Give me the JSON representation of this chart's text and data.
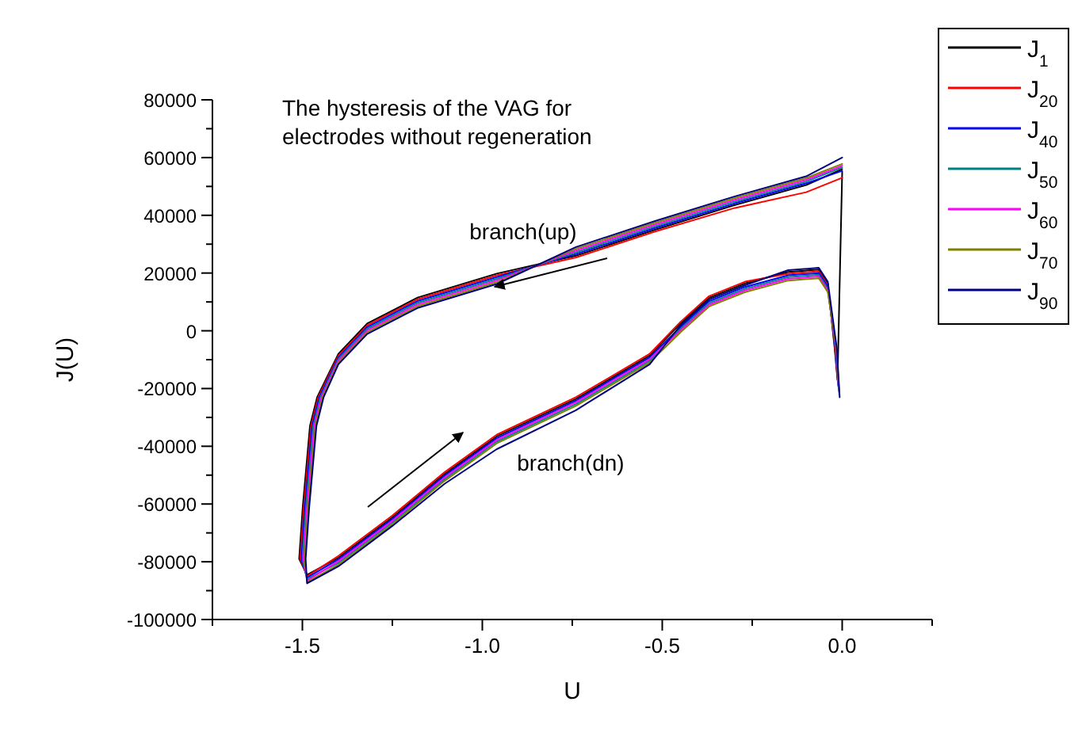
{
  "chart_data": {
    "type": "line",
    "title": "The hysteresis of the VAG for electrodes without regeneration",
    "xlabel": "U",
    "ylabel": "J(U)",
    "series": [
      {
        "name": "J$_{1}$",
        "color": "#000000",
        "x": [
          0.0,
          -0.1,
          -0.3,
          -0.52,
          -0.74,
          -0.96,
          -1.18,
          -1.32,
          -1.4,
          -1.459,
          -1.479,
          -1.499,
          -1.509,
          -1.487,
          -1.4,
          -1.25,
          -1.105,
          -0.96,
          -0.74,
          -0.535,
          -0.45,
          -0.37,
          -0.27,
          -0.15,
          -0.065,
          -0.04,
          -0.021,
          -0.013,
          0.0
        ],
        "values": [
          56000,
          50500,
          43500,
          35000,
          26000,
          19800,
          11500,
          2500,
          -8000,
          -23000,
          -33000,
          -61000,
          -79000,
          -84500,
          -78600,
          -64600,
          -49600,
          -36600,
          -23600,
          -8600,
          2400,
          11400,
          16400,
          20400,
          21200,
          16400,
          -6000,
          -17000,
          55000
        ]
      },
      {
        "name": "J$_{20}$",
        "color": "#ff0000",
        "x": [
          0.0,
          -0.1,
          -0.3,
          -0.52,
          -0.74,
          -0.96,
          -1.18,
          -1.32,
          -1.4,
          -1.456,
          -1.476,
          -1.496,
          -1.506,
          -1.487,
          -1.4,
          -1.25,
          -1.105,
          -0.96,
          -0.74,
          -0.535,
          -0.45,
          -0.37,
          -0.27,
          -0.15,
          -0.065,
          -0.04,
          -0.02,
          -0.012
        ],
        "values": [
          53000,
          48000,
          42500,
          34400,
          25400,
          19200,
          10900,
          1900,
          -8600,
          -23000,
          -33000,
          -61000,
          -79000,
          -85000,
          -78000,
          -64000,
          -49000,
          -36000,
          -23000,
          -8000,
          3000,
          12000,
          17000,
          19800,
          20600,
          15800,
          -6000,
          -18000
        ]
      },
      {
        "name": "J$_{40}$",
        "color": "#0000ff",
        "x": [
          0.0,
          -0.1,
          -0.3,
          -0.52,
          -0.74,
          -0.96,
          -1.18,
          -1.32,
          -1.4,
          -1.453,
          -1.473,
          -1.493,
          -1.503,
          -1.487,
          -1.4,
          -1.25,
          -1.105,
          -0.96,
          -0.74,
          -0.535,
          -0.45,
          -0.37,
          -0.27,
          -0.15,
          -0.065,
          -0.04,
          -0.019,
          -0.011
        ],
        "values": [
          55400,
          51100,
          44100,
          35600,
          26600,
          18600,
          10300,
          1300,
          -9200,
          -23000,
          -33000,
          -61000,
          -79000,
          -85500,
          -79200,
          -65200,
          -50200,
          -37200,
          -24200,
          -9200,
          1200,
          10200,
          15200,
          19200,
          20000,
          15200,
          -6000,
          -19000
        ]
      },
      {
        "name": "J$_{50}$",
        "color": "#008080",
        "x": [
          0.0,
          -0.1,
          -0.3,
          -0.52,
          -0.74,
          -0.96,
          -1.18,
          -1.32,
          -1.4,
          -1.45,
          -1.47,
          -1.49,
          -1.5,
          -1.487,
          -1.4,
          -1.25,
          -1.105,
          -0.96,
          -0.74,
          -0.535,
          -0.45,
          -0.37,
          -0.27,
          -0.15,
          -0.065,
          -0.04,
          -0.018,
          -0.01
        ],
        "values": [
          56600,
          51700,
          44700,
          36200,
          27200,
          18000,
          9700,
          700,
          -9800,
          -23000,
          -33000,
          -61000,
          -79000,
          -86000,
          -80400,
          -66400,
          -51400,
          -38400,
          -25400,
          -10400,
          600,
          9600,
          14600,
          18600,
          19400,
          14600,
          -6000,
          -20000
        ]
      },
      {
        "name": "J$_{60}$",
        "color": "#ff00ff",
        "x": [
          0.0,
          -0.1,
          -0.3,
          -0.52,
          -0.74,
          -0.96,
          -1.18,
          -1.32,
          -1.4,
          -1.447,
          -1.467,
          -1.487,
          -1.497,
          -1.487,
          -1.4,
          -1.25,
          -1.105,
          -0.96,
          -0.74,
          -0.535,
          -0.45,
          -0.37,
          -0.27,
          -0.15,
          -0.065,
          -0.04,
          -0.017,
          -0.009
        ],
        "values": [
          57200,
          52300,
          45300,
          36800,
          27800,
          17400,
          9100,
          100,
          -10400,
          -23000,
          -33000,
          -61000,
          -79000,
          -86500,
          -79800,
          -65800,
          -50800,
          -37800,
          -24800,
          -9800,
          0,
          9000,
          14000,
          18000,
          18800,
          14000,
          -6000,
          -21000
        ]
      },
      {
        "name": "J$_{70}$",
        "color": "#808000",
        "x": [
          0.0,
          -0.1,
          -0.3,
          -0.52,
          -0.74,
          -0.96,
          -1.18,
          -1.32,
          -1.4,
          -1.444,
          -1.464,
          -1.484,
          -1.494,
          -1.487,
          -1.4,
          -1.25,
          -1.105,
          -0.96,
          -0.74,
          -0.535,
          -0.45,
          -0.37,
          -0.27,
          -0.15,
          -0.065,
          -0.04,
          -0.016,
          -0.008
        ],
        "values": [
          57800,
          52900,
          45900,
          37400,
          28400,
          16800,
          8500,
          -500,
          -11000,
          -23000,
          -33000,
          -61000,
          -79000,
          -87000,
          -81000,
          -67000,
          -52000,
          -39000,
          -26000,
          -11000,
          -600,
          8400,
          13400,
          17400,
          18200,
          13400,
          -6000,
          -22000
        ]
      },
      {
        "name": "J$_{90}$",
        "color": "#000080",
        "x": [
          0.0,
          -0.1,
          -0.3,
          -0.52,
          -0.74,
          -0.96,
          -1.18,
          -1.32,
          -1.4,
          -1.441,
          -1.461,
          -1.481,
          -1.491,
          -1.487,
          -1.4,
          -1.25,
          -1.105,
          -0.96,
          -0.74,
          -0.535,
          -0.45,
          -0.37,
          -0.27,
          -0.15,
          -0.065,
          -0.04,
          -0.015,
          -0.007
        ],
        "values": [
          60000,
          53500,
          46500,
          38000,
          29000,
          16200,
          7900,
          -1100,
          -11600,
          -23000,
          -33000,
          -61000,
          -79000,
          -87500,
          -81600,
          -67600,
          -53000,
          -41000,
          -27500,
          -11600,
          1800,
          10800,
          15800,
          21000,
          21800,
          17000,
          -6000,
          -23000
        ]
      }
    ],
    "xlim": [
      -1.75,
      0.25
    ],
    "xticks": [
      {
        "value": -1.75,
        "label": null
      },
      {
        "value": -1.5,
        "label": "-1.5"
      },
      {
        "value": -1.25,
        "label": null
      },
      {
        "value": -1.0,
        "label": "-1.0"
      },
      {
        "value": -0.75,
        "label": null
      },
      {
        "value": -0.5,
        "label": "-0.5"
      },
      {
        "value": -0.25,
        "label": null
      },
      {
        "value": 0,
        "label": "0.0"
      },
      {
        "value": 0.25,
        "label": null
      }
    ],
    "ylim": [
      -100000,
      80000
    ],
    "yticks": [
      -100000,
      {
        "value": -90000,
        "label": null
      },
      -80000,
      {
        "value": -70000,
        "label": null
      },
      -60000,
      {
        "value": -50000,
        "label": null
      },
      -40000,
      {
        "value": -30000,
        "label": null
      },
      -20000,
      {
        "value": -10000,
        "label": null
      },
      0,
      {
        "value": 10000,
        "label": null
      },
      20000,
      {
        "value": 30000,
        "label": null
      },
      40000,
      {
        "value": 50000,
        "label": null
      },
      60000,
      {
        "value": 70000,
        "label": null
      },
      80000
    ],
    "annotations": [
      "branch(up)",
      "branch(dn)"
    ],
    "legend": "top right",
    "grid": false,
    "marker": "none",
    "line_style": "solid"
  }
}
